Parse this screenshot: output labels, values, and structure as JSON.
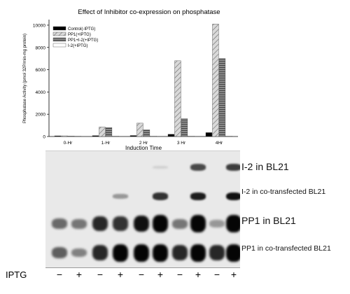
{
  "chart_data": {
    "type": "bar",
    "title": "Effect of Inhibitor co-expression on phosphatase",
    "xlabel": "Induction Time",
    "ylabel": "Phosphatase Activity (pmol 32P/min-mg protein)",
    "categories": [
      "0-Hr",
      "1-Hr",
      "2 Hr",
      "3 Hr",
      "4Hr"
    ],
    "ylim": [
      0,
      10500
    ],
    "yticks": [
      "0",
      "2000",
      "4000",
      "6000",
      "8000",
      "10000"
    ],
    "ytick_values": [
      0,
      2000,
      4000,
      6000,
      8000,
      10000
    ],
    "legend_position": "top-left",
    "series": [
      {
        "name": "Control(-IPTG)",
        "values": [
          60,
          80,
          90,
          200,
          350
        ]
      },
      {
        "name": "PP1(+IPTG)",
        "values": [
          60,
          850,
          1200,
          6800,
          10100
        ]
      },
      {
        "name": "PP1+I-2(+IPTG)",
        "values": [
          40,
          800,
          600,
          1600,
          7000
        ]
      },
      {
        "name": "I-2(+IPTG)",
        "values": [
          20,
          30,
          40,
          40,
          40
        ]
      }
    ],
    "series_fills": [
      "#000000",
      "pattern-diag",
      "pattern-horiz",
      "#ffffff"
    ]
  },
  "blots": [
    {
      "label": "I-2 in BL21",
      "size": "big"
    },
    {
      "label": "I-2 in co-transfected BL21",
      "size": "small"
    },
    {
      "label": "PP1 in BL21",
      "size": "big"
    },
    {
      "label": "PP1 in co-transfected BL21",
      "size": "small"
    }
  ],
  "blot_intensity": [
    [
      0,
      0,
      0,
      0,
      0,
      0.1,
      0,
      0.7,
      0,
      0.75
    ],
    [
      0,
      0,
      0,
      0.35,
      0,
      0.8,
      0,
      0.9,
      0,
      0.95
    ],
    [
      0.55,
      0.5,
      0.85,
      0.8,
      0.95,
      1,
      0.5,
      1,
      0.35,
      1
    ],
    [
      0.6,
      0.45,
      0.85,
      1,
      1,
      1,
      0.85,
      1,
      0.85,
      1
    ]
  ],
  "ipgt": {
    "label": "IPTG",
    "lanes": [
      "−",
      "+",
      "−",
      "+",
      "−",
      "+",
      "−",
      "+",
      "−",
      "+"
    ]
  }
}
